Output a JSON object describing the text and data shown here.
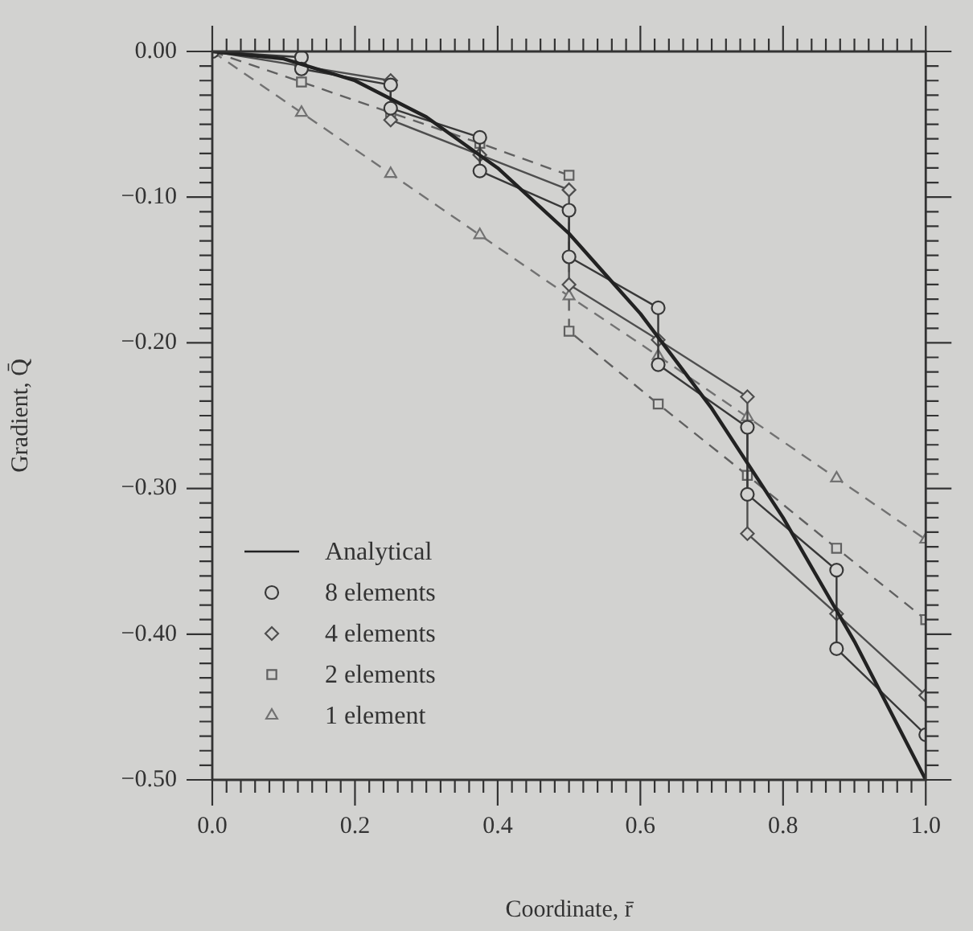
{
  "chart_data": {
    "type": "line",
    "xlabel": "Coordinate, r̄",
    "ylabel": "Gradient, Q̄",
    "legend": "bottom left",
    "grid": false,
    "xlim": [
      0,
      1
    ],
    "ylim": [
      -0.5,
      0
    ],
    "xticks": [
      {
        "value": 0,
        "label": "0.0"
      },
      {
        "value": 0.02,
        "label": null
      },
      {
        "value": 0.04,
        "label": null
      },
      {
        "value": 0.06,
        "label": null
      },
      {
        "value": 0.08,
        "label": null
      },
      {
        "value": 0.1,
        "label": null
      },
      {
        "value": 0.12,
        "label": null
      },
      {
        "value": 0.14,
        "label": null
      },
      {
        "value": 0.16,
        "label": null
      },
      {
        "value": 0.18,
        "label": null
      },
      {
        "value": 0.2,
        "label": "0.2"
      },
      {
        "value": 0.22,
        "label": null
      },
      {
        "value": 0.24,
        "label": null
      },
      {
        "value": 0.26,
        "label": null
      },
      {
        "value": 0.28,
        "label": null
      },
      {
        "value": 0.3,
        "label": null
      },
      {
        "value": 0.32,
        "label": null
      },
      {
        "value": 0.34,
        "label": null
      },
      {
        "value": 0.36,
        "label": null
      },
      {
        "value": 0.38,
        "label": null
      },
      {
        "value": 0.4,
        "label": "0.4"
      },
      {
        "value": 0.42,
        "label": null
      },
      {
        "value": 0.44,
        "label": null
      },
      {
        "value": 0.46,
        "label": null
      },
      {
        "value": 0.48,
        "label": null
      },
      {
        "value": 0.5,
        "label": null
      },
      {
        "value": 0.52,
        "label": null
      },
      {
        "value": 0.54,
        "label": null
      },
      {
        "value": 0.56,
        "label": null
      },
      {
        "value": 0.58,
        "label": null
      },
      {
        "value": 0.6,
        "label": "0.6"
      },
      {
        "value": 0.62,
        "label": null
      },
      {
        "value": 0.64,
        "label": null
      },
      {
        "value": 0.66,
        "label": null
      },
      {
        "value": 0.68,
        "label": null
      },
      {
        "value": 0.7,
        "label": null
      },
      {
        "value": 0.72,
        "label": null
      },
      {
        "value": 0.74,
        "label": null
      },
      {
        "value": 0.76,
        "label": null
      },
      {
        "value": 0.78,
        "label": null
      },
      {
        "value": 0.8,
        "label": "0.8"
      },
      {
        "value": 0.82,
        "label": null
      },
      {
        "value": 0.84,
        "label": null
      },
      {
        "value": 0.86,
        "label": null
      },
      {
        "value": 0.88,
        "label": null
      },
      {
        "value": 0.9,
        "label": null
      },
      {
        "value": 0.92,
        "label": null
      },
      {
        "value": 0.94,
        "label": null
      },
      {
        "value": 0.96,
        "label": null
      },
      {
        "value": 0.98,
        "label": null
      },
      {
        "value": 1,
        "label": "1.0"
      }
    ],
    "yticks": [
      {
        "value": 0,
        "label": "0.00"
      },
      {
        "value": -0.01,
        "label": null
      },
      {
        "value": -0.02,
        "label": null
      },
      {
        "value": -0.03,
        "label": null
      },
      {
        "value": -0.04,
        "label": null
      },
      {
        "value": -0.05,
        "label": null
      },
      {
        "value": -0.06,
        "label": null
      },
      {
        "value": -0.07,
        "label": null
      },
      {
        "value": -0.08,
        "label": null
      },
      {
        "value": -0.09,
        "label": null
      },
      {
        "value": -0.1,
        "label": "−0.10"
      },
      {
        "value": -0.11,
        "label": null
      },
      {
        "value": -0.12,
        "label": null
      },
      {
        "value": -0.13,
        "label": null
      },
      {
        "value": -0.14,
        "label": null
      },
      {
        "value": -0.15,
        "label": null
      },
      {
        "value": -0.16,
        "label": null
      },
      {
        "value": -0.17,
        "label": null
      },
      {
        "value": -0.18,
        "label": null
      },
      {
        "value": -0.19,
        "label": null
      },
      {
        "value": -0.2,
        "label": "−0.20"
      },
      {
        "value": -0.21,
        "label": null
      },
      {
        "value": -0.22,
        "label": null
      },
      {
        "value": -0.23,
        "label": null
      },
      {
        "value": -0.24,
        "label": null
      },
      {
        "value": -0.25,
        "label": null
      },
      {
        "value": -0.26,
        "label": null
      },
      {
        "value": -0.27,
        "label": null
      },
      {
        "value": -0.28,
        "label": null
      },
      {
        "value": -0.29,
        "label": null
      },
      {
        "value": -0.3,
        "label": "−0.30"
      },
      {
        "value": -0.31,
        "label": null
      },
      {
        "value": -0.32,
        "label": null
      },
      {
        "value": -0.33,
        "label": null
      },
      {
        "value": -0.34,
        "label": null
      },
      {
        "value": -0.35,
        "label": null
      },
      {
        "value": -0.36,
        "label": null
      },
      {
        "value": -0.37,
        "label": null
      },
      {
        "value": -0.38,
        "label": null
      },
      {
        "value": -0.39,
        "label": null
      },
      {
        "value": -0.4,
        "label": "−0.40"
      },
      {
        "value": -0.41,
        "label": null
      },
      {
        "value": -0.42,
        "label": null
      },
      {
        "value": -0.43,
        "label": null
      },
      {
        "value": -0.44,
        "label": null
      },
      {
        "value": -0.45,
        "label": null
      },
      {
        "value": -0.46,
        "label": null
      },
      {
        "value": -0.47,
        "label": null
      },
      {
        "value": -0.48,
        "label": null
      },
      {
        "value": -0.49,
        "label": null
      },
      {
        "value": -0.5,
        "label": "−0.50"
      }
    ],
    "series": [
      {
        "name": "Analytical",
        "color": "#222222",
        "marker": "none",
        "line_style": "solid",
        "x": [
          0,
          0.1,
          0.2,
          0.3,
          0.4,
          0.5,
          0.6,
          0.7,
          0.8,
          0.9,
          1
        ],
        "values": [
          0,
          -0.005,
          -0.02,
          -0.045,
          -0.08,
          -0.125,
          -0.18,
          -0.245,
          -0.32,
          -0.405,
          -0.5
        ]
      },
      {
        "name": "8 elements",
        "color": "#383838",
        "marker": "circle",
        "line_style": "solid",
        "x": [
          0,
          0.125,
          0.125,
          0.25,
          0.25,
          0.375,
          0.375,
          0.5,
          0.5,
          0.625,
          0.625,
          0.75,
          0.75,
          0.875,
          0.875,
          1
        ],
        "values": [
          0,
          -0.004,
          -0.012,
          -0.023,
          -0.039,
          -0.059,
          -0.082,
          -0.109,
          -0.141,
          -0.176,
          -0.215,
          -0.258,
          -0.304,
          -0.356,
          -0.41,
          -0.469
        ]
      },
      {
        "name": "4 elements",
        "color": "#4e4e4e",
        "marker": "diamond",
        "line_style": "solid",
        "x": [
          0,
          0.125,
          0.25,
          0.25,
          0.375,
          0.5,
          0.5,
          0.625,
          0.75,
          0.75,
          0.875,
          1
        ],
        "values": [
          0,
          -0.01,
          -0.02,
          -0.047,
          -0.071,
          -0.095,
          -0.16,
          -0.198,
          -0.237,
          -0.331,
          -0.386,
          -0.442
        ]
      },
      {
        "name": "2 elements",
        "color": "#606060",
        "marker": "square",
        "line_style": "dashed",
        "x": [
          0,
          0.125,
          0.25,
          0.375,
          0.5,
          0.5,
          0.625,
          0.75,
          0.875,
          1
        ],
        "values": [
          0,
          -0.021,
          -0.042,
          -0.063,
          -0.085,
          -0.192,
          -0.242,
          -0.291,
          -0.341,
          -0.39
        ]
      },
      {
        "name": "1 element",
        "color": "#727272",
        "marker": "triangle",
        "line_style": "dashed",
        "x": [
          0,
          0.125,
          0.25,
          0.375,
          0.5,
          0.625,
          0.75,
          0.875,
          1
        ],
        "values": [
          0,
          -0.042,
          -0.084,
          -0.126,
          -0.168,
          -0.209,
          -0.251,
          -0.293,
          -0.335
        ]
      }
    ]
  }
}
